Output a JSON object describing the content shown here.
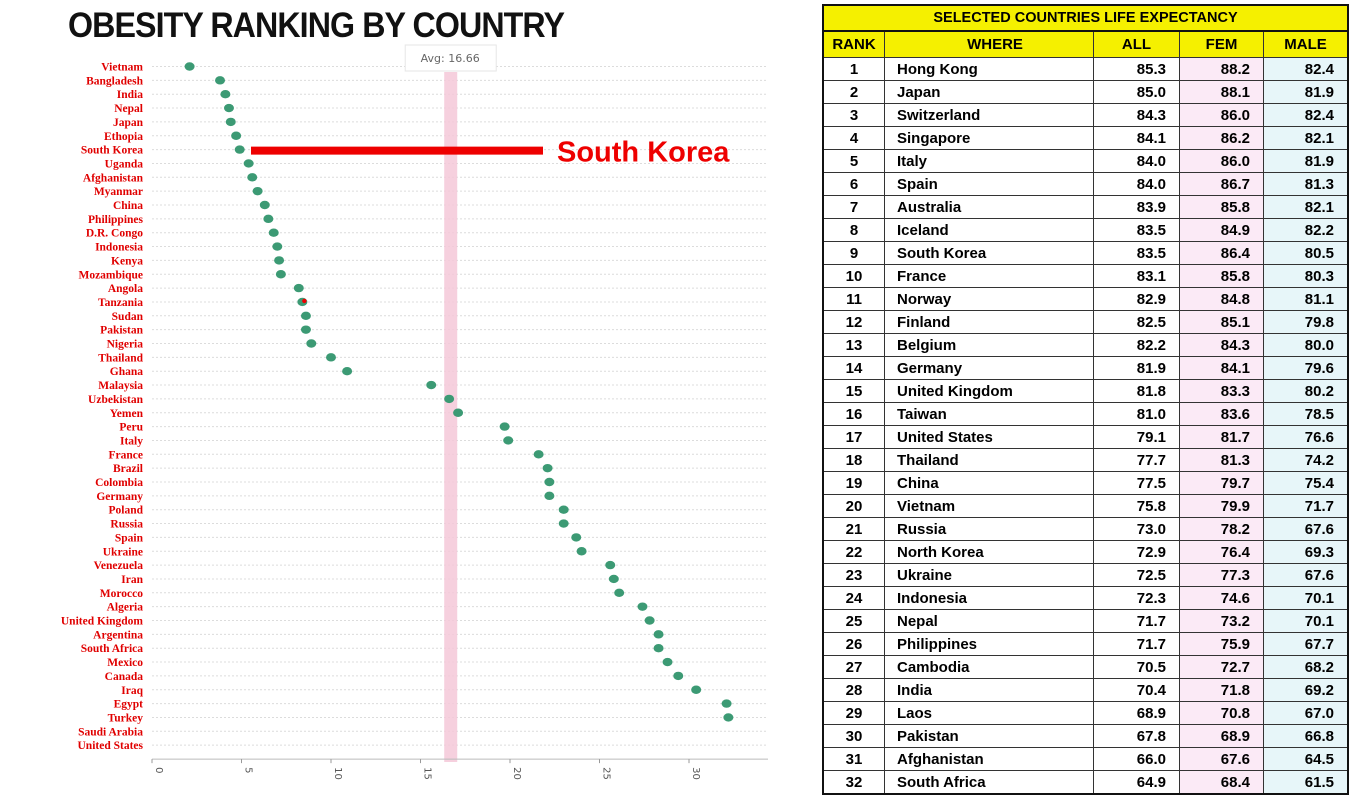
{
  "chart_data": [
    {
      "type": "scatter",
      "title": "OBESITY RANKING BY COUNTRY",
      "categories": [
        "Vietnam",
        "Bangladesh",
        "India",
        "Nepal",
        "Japan",
        "Ethopia",
        "South Korea",
        "Uganda",
        "Afghanistan",
        "Myanmar",
        "China",
        "Philippines",
        "D.R. Congo",
        "Indonesia",
        "Kenya",
        "Mozambique",
        "Angola",
        "Tanzania",
        "Sudan",
        "Pakistan",
        "Nigeria",
        "Thailand",
        "Ghana",
        "Malaysia",
        "Uzbekistan",
        "Yemen",
        "Peru",
        "Italy",
        "France",
        "Brazil",
        "Colombia",
        "Germany",
        "Poland",
        "Russia",
        "Spain",
        "Ukraine",
        "Venezuela",
        "Iran",
        "Morocco",
        "Algeria",
        "United Kingdom",
        "Argentina",
        "South Africa",
        "Mexico",
        "Canada",
        "Iraq",
        "Egypt",
        "Turkey",
        "Saudi Arabia",
        "United States"
      ],
      "values": [
        2.1,
        3.8,
        4.1,
        4.3,
        4.4,
        4.7,
        4.9,
        5.4,
        5.6,
        5.9,
        6.3,
        6.5,
        6.8,
        7.0,
        7.1,
        7.2,
        8.2,
        8.4,
        8.6,
        8.6,
        8.9,
        10.0,
        10.9,
        15.6,
        16.6,
        17.1,
        19.7,
        19.9,
        21.6,
        22.1,
        22.2,
        22.2,
        23.0,
        23.0,
        23.7,
        24.0,
        25.6,
        25.8,
        26.1,
        27.4,
        27.8,
        28.3,
        28.3,
        28.8,
        29.4,
        30.4,
        32.1,
        32.2,
        null,
        null
      ],
      "xlim": [
        0,
        33
      ],
      "xticks": [
        0,
        5,
        10,
        15,
        20,
        25,
        30
      ],
      "average": {
        "value": 16.66,
        "label": "Avg: 16.66"
      },
      "highlight": {
        "category": "South Korea",
        "label": "South Korea"
      },
      "point_color": "#3c9a74",
      "highlight_color": "#ee0000",
      "grid": true
    },
    {
      "type": "table",
      "title": "SELECTED COUNTRIES LIFE EXPECTANCY",
      "columns": [
        "RANK",
        "WHERE",
        "ALL",
        "FEM",
        "MALE"
      ],
      "highlight_rank": 9,
      "rows": [
        [
          "1",
          "Hong Kong",
          "85.3",
          "88.2",
          "82.4"
        ],
        [
          "2",
          "Japan",
          "85.0",
          "88.1",
          "81.9"
        ],
        [
          "3",
          "Switzerland",
          "84.3",
          "86.0",
          "82.4"
        ],
        [
          "4",
          "Singapore",
          "84.1",
          "86.2",
          "82.1"
        ],
        [
          "5",
          "Italy",
          "84.0",
          "86.0",
          "81.9"
        ],
        [
          "6",
          "Spain",
          "84.0",
          "86.7",
          "81.3"
        ],
        [
          "7",
          "Australia",
          "83.9",
          "85.8",
          "82.1"
        ],
        [
          "8",
          "Iceland",
          "83.5",
          "84.9",
          "82.2"
        ],
        [
          "9",
          "South Korea",
          "83.5",
          "86.4",
          "80.5"
        ],
        [
          "10",
          "France",
          "83.1",
          "85.8",
          "80.3"
        ],
        [
          "11",
          "Norway",
          "82.9",
          "84.8",
          "81.1"
        ],
        [
          "12",
          "Finland",
          "82.5",
          "85.1",
          "79.8"
        ],
        [
          "13",
          "Belgium",
          "82.2",
          "84.3",
          "80.0"
        ],
        [
          "14",
          "Germany",
          "81.9",
          "84.1",
          "79.6"
        ],
        [
          "15",
          "United Kingdom",
          "81.8",
          "83.3",
          "80.2"
        ],
        [
          "16",
          "Taiwan",
          "81.0",
          "83.6",
          "78.5"
        ],
        [
          "17",
          "United States",
          "79.1",
          "81.7",
          "76.6"
        ],
        [
          "18",
          "Thailand",
          "77.7",
          "81.3",
          "74.2"
        ],
        [
          "19",
          "China",
          "77.5",
          "79.7",
          "75.4"
        ],
        [
          "20",
          "Vietnam",
          "75.8",
          "79.9",
          "71.7"
        ],
        [
          "21",
          "Russia",
          "73.0",
          "78.2",
          "67.6"
        ],
        [
          "22",
          "North Korea",
          "72.9",
          "76.4",
          "69.3"
        ],
        [
          "23",
          "Ukraine",
          "72.5",
          "77.3",
          "67.6"
        ],
        [
          "24",
          "Indonesia",
          "72.3",
          "74.6",
          "70.1"
        ],
        [
          "25",
          "Nepal",
          "71.7",
          "73.2",
          "70.1"
        ],
        [
          "26",
          "Philippines",
          "71.7",
          "75.9",
          "67.7"
        ],
        [
          "27",
          "Cambodia",
          "70.5",
          "72.7",
          "68.2"
        ],
        [
          "28",
          "India",
          "70.4",
          "71.8",
          "69.2"
        ],
        [
          "29",
          "Laos",
          "68.9",
          "70.8",
          "67.0"
        ],
        [
          "30",
          "Pakistan",
          "67.8",
          "68.9",
          "66.8"
        ],
        [
          "31",
          "Afghanistan",
          "66.0",
          "67.6",
          "64.5"
        ],
        [
          "32",
          "South Africa",
          "64.9",
          "68.4",
          "61.5"
        ]
      ]
    }
  ]
}
